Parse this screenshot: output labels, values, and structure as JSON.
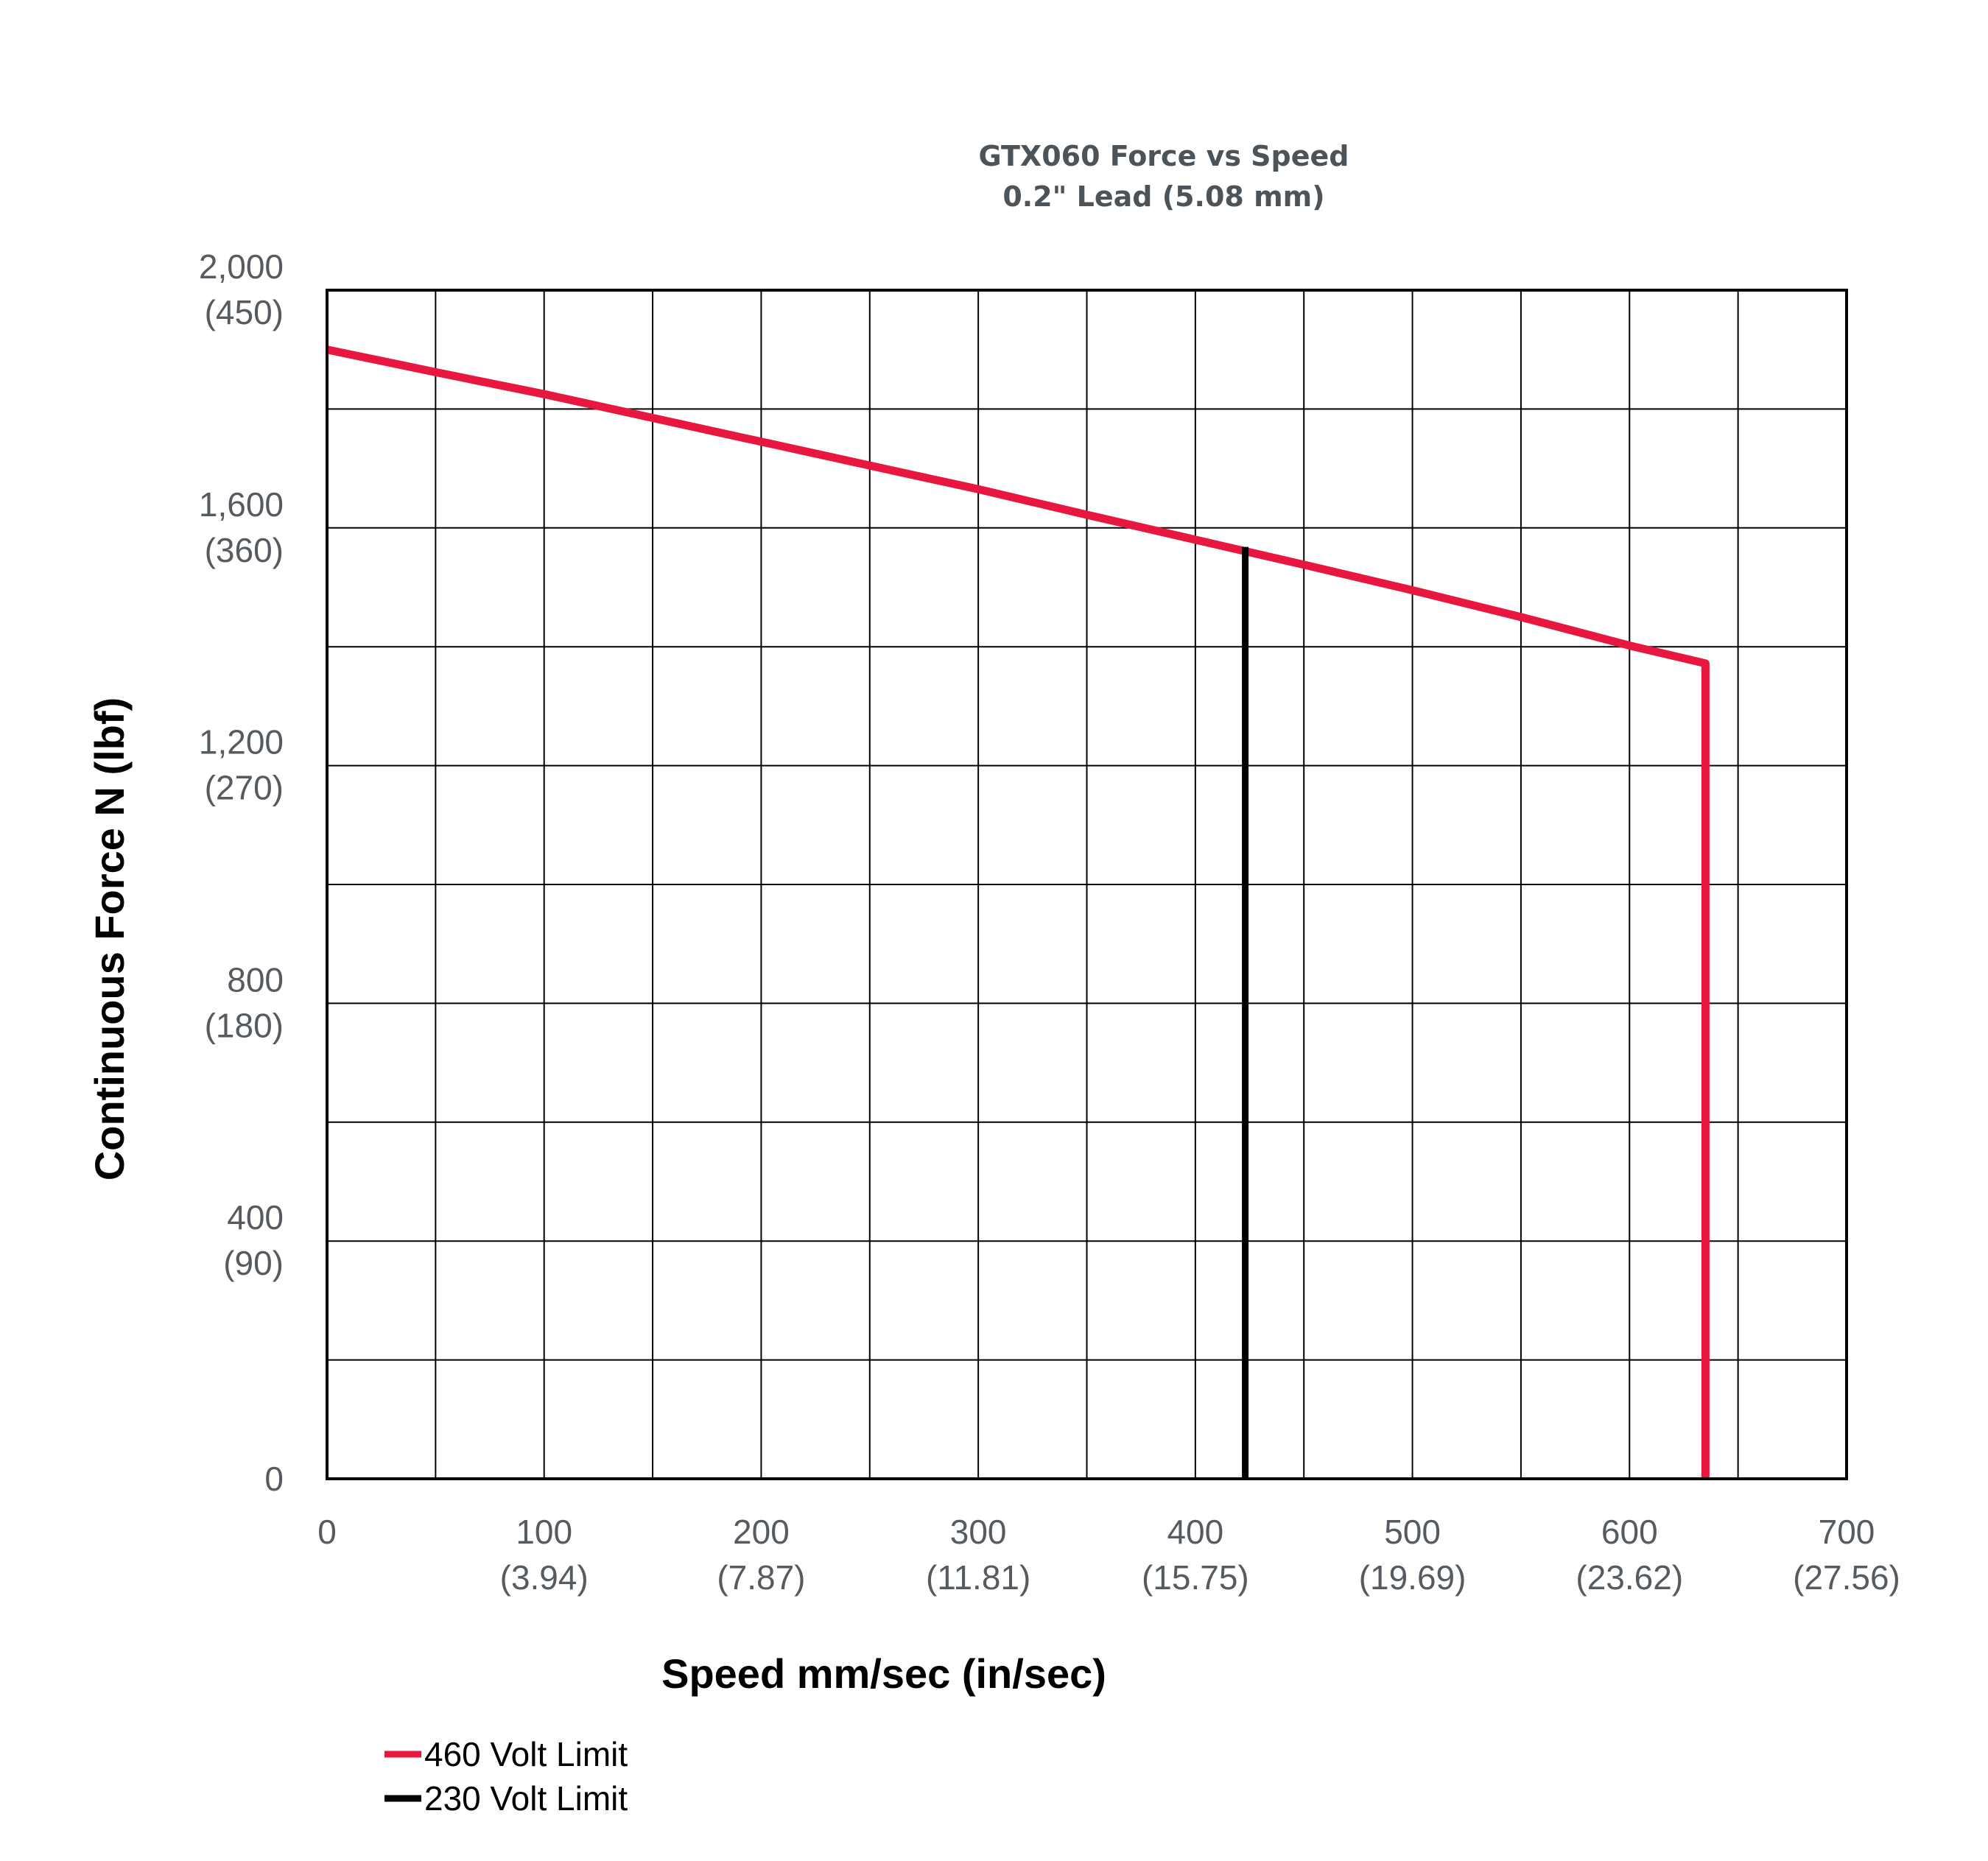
{
  "chart_data": {
    "type": "line",
    "title": "GTX060 Force vs Speed",
    "subtitle": "0.2\" Lead (5.08 mm)",
    "xlabel": "Speed mm/sec (in/sec)",
    "ylabel": "Continuous Force N (lbf)",
    "xlim": [
      0,
      700
    ],
    "ylim": [
      0,
      2000
    ],
    "x_ticks": [
      {
        "value": 0,
        "label": "0",
        "sublabel": ""
      },
      {
        "value": 100,
        "label": "100",
        "sublabel": "(3.94)"
      },
      {
        "value": 200,
        "label": "200",
        "sublabel": "(7.87)"
      },
      {
        "value": 300,
        "label": "300",
        "sublabel": "(11.81)"
      },
      {
        "value": 400,
        "label": "400",
        "sublabel": "(15.75)"
      },
      {
        "value": 500,
        "label": "500",
        "sublabel": "(19.69)"
      },
      {
        "value": 600,
        "label": "600",
        "sublabel": "(23.62)"
      },
      {
        "value": 700,
        "label": "700",
        "sublabel": "(27.56)"
      }
    ],
    "y_ticks": [
      {
        "value": 0,
        "label": "0",
        "sublabel": ""
      },
      {
        "value": 400,
        "label": "400",
        "sublabel": "(90)"
      },
      {
        "value": 800,
        "label": "800",
        "sublabel": "(180)"
      },
      {
        "value": 1200,
        "label": "1,200",
        "sublabel": "(270)"
      },
      {
        "value": 1600,
        "label": "1,600",
        "sublabel": "(360)"
      },
      {
        "value": 2000,
        "label": "2,000",
        "sublabel": "(450)"
      }
    ],
    "grid": true,
    "x_grid_step": 50,
    "y_grid_step": 200,
    "series": [
      {
        "name": "460 Volt Limit",
        "color": "#e8173f",
        "x": [
          0,
          50,
          100,
          150,
          200,
          250,
          300,
          350,
          400,
          450,
          500,
          550,
          600,
          635,
          635
        ],
        "y": [
          1900,
          1862,
          1825,
          1785,
          1745,
          1705,
          1665,
          1622,
          1580,
          1538,
          1495,
          1450,
          1402,
          1372,
          0
        ]
      },
      {
        "name": "230 Volt Limit",
        "color": "#000000",
        "x": [
          423,
          423
        ],
        "y": [
          1568,
          0
        ]
      }
    ],
    "legend_position": "bottom-left"
  }
}
